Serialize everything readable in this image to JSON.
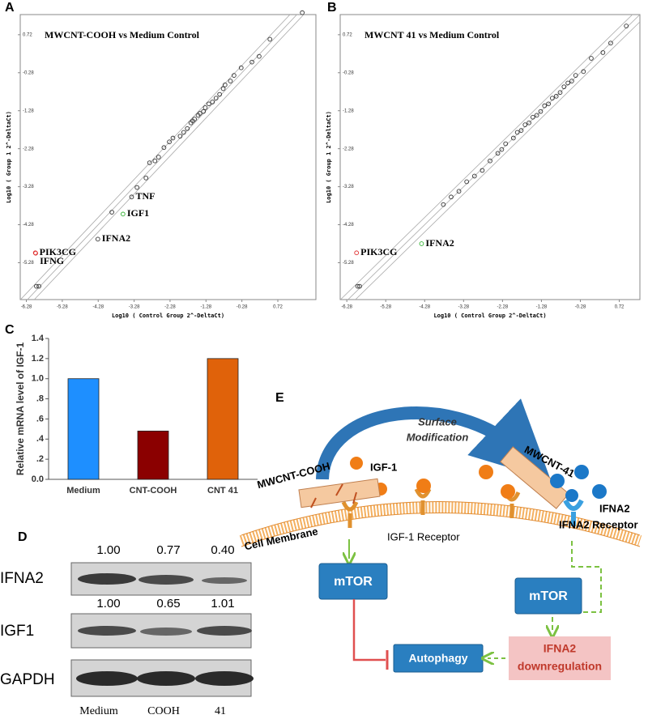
{
  "panel_labels": [
    "A",
    "B",
    "C",
    "D",
    "E"
  ],
  "chart_data": [
    {
      "type": "scatter",
      "title": "MWCNT-COOH vs Medium Control",
      "x_label": "Log10 ( Control Group 2^-DeltaCt)",
      "y_label": "Log10 ( Group 1 2^-DeltaCt)",
      "xlim": [
        -6.45,
        1.78
      ],
      "ylim": [
        -6.25,
        1.25
      ],
      "xticks": [
        -6.28,
        -5.28,
        -4.28,
        -3.28,
        -2.28,
        -1.28,
        -0.28,
        0.72
      ],
      "yticks": [
        -5.28,
        -4.28,
        -3.28,
        -2.28,
        -1.28,
        -0.28,
        0.72
      ],
      "marker_color": "#333333",
      "x": [
        -6.0,
        -5.93,
        -6.03,
        -6.02,
        -4.29,
        -3.59,
        -3.9,
        -3.35,
        -3.2,
        -2.95,
        -2.85,
        -2.7,
        -2.6,
        -2.45,
        -2.3,
        -2.2,
        -2.0,
        -1.9,
        -1.8,
        -1.7,
        -1.65,
        -1.6,
        -1.5,
        -1.45,
        -1.35,
        -1.3,
        -1.2,
        -1.1,
        -1.0,
        -0.9,
        -0.8,
        -0.75,
        -0.6,
        -0.5,
        -0.3,
        0.0,
        0.2,
        0.5,
        1.4
      ],
      "y": [
        -5.9,
        -5.9,
        -5.02,
        -5.03,
        -4.66,
        -4.0,
        -3.95,
        -3.55,
        -3.3,
        -3.05,
        -2.65,
        -2.6,
        -2.5,
        -2.25,
        -2.1,
        -2.0,
        -1.95,
        -1.85,
        -1.75,
        -1.6,
        -1.55,
        -1.5,
        -1.4,
        -1.35,
        -1.3,
        -1.2,
        -1.1,
        -1.05,
        -0.95,
        -0.85,
        -0.7,
        -0.6,
        -0.5,
        -0.35,
        -0.15,
        0.0,
        0.15,
        0.6,
        1.3
      ],
      "labels": [
        null,
        null,
        "PIK3CG",
        "IFNG",
        "IFNA2",
        "IGF1",
        null,
        "TNF",
        null,
        null,
        null,
        null,
        null,
        null,
        null,
        null,
        null,
        null,
        null,
        null,
        null,
        null,
        null,
        null,
        null,
        null,
        null,
        null,
        null,
        null,
        null,
        null,
        null,
        null,
        null,
        null,
        null,
        null,
        null
      ],
      "highlight_colors": [
        null,
        null,
        "#e03030",
        "#e03030",
        null,
        "#30b030",
        null,
        null,
        null,
        null,
        null,
        null,
        null,
        null,
        null,
        null,
        null,
        null,
        null,
        null,
        null,
        null,
        null,
        null,
        null,
        null,
        null,
        null,
        null,
        null,
        null,
        null,
        null,
        null,
        null,
        null,
        null,
        null,
        null
      ]
    },
    {
      "type": "scatter",
      "title": "MWCNT 41 vs Medium Control",
      "x_label": "Log10 ( Control Group 2^-DeltaCt)",
      "y_label": "Log10 ( Group 1 2^-DeltaCt)",
      "xlim": [
        -6.45,
        1.25
      ],
      "ylim": [
        -6.25,
        1.25
      ],
      "xticks": [
        -6.28,
        -5.28,
        -4.28,
        -3.28,
        -2.28,
        -1.28,
        -0.28,
        0.72
      ],
      "yticks": [
        -5.28,
        -4.28,
        -3.28,
        -2.28,
        -1.28,
        -0.28,
        0.72
      ],
      "marker_color": "#333333",
      "x": [
        -6.0,
        -5.95,
        -6.03,
        -4.36,
        -3.8,
        -3.6,
        -3.4,
        -3.2,
        -3.0,
        -2.8,
        -2.6,
        -2.4,
        -2.3,
        -2.2,
        -2.0,
        -1.9,
        -1.8,
        -1.7,
        -1.6,
        -1.5,
        -1.4,
        -1.3,
        -1.2,
        -1.1,
        -1.0,
        -0.9,
        -0.8,
        -0.7,
        -0.6,
        -0.5,
        -0.4,
        -0.2,
        0.0,
        0.3,
        0.5,
        0.9
      ],
      "y": [
        -5.9,
        -5.9,
        -5.02,
        -4.78,
        -3.75,
        -3.55,
        -3.4,
        -3.15,
        -3.0,
        -2.85,
        -2.6,
        -2.4,
        -2.3,
        -2.15,
        -2.0,
        -1.85,
        -1.8,
        -1.65,
        -1.6,
        -1.45,
        -1.4,
        -1.3,
        -1.15,
        -1.1,
        -0.95,
        -0.9,
        -0.8,
        -0.65,
        -0.55,
        -0.5,
        -0.35,
        -0.25,
        0.1,
        0.25,
        0.5,
        0.95
      ],
      "labels": [
        null,
        null,
        "PIK3CG",
        "IFNA2",
        null,
        null,
        null,
        null,
        null,
        null,
        null,
        null,
        null,
        null,
        null,
        null,
        null,
        null,
        null,
        null,
        null,
        null,
        null,
        null,
        null,
        null,
        null,
        null,
        null,
        null,
        null,
        null,
        null,
        null,
        null,
        null
      ],
      "highlight_colors": [
        null,
        null,
        "#e03030",
        "#30b030",
        null,
        null,
        null,
        null,
        null,
        null,
        null,
        null,
        null,
        null,
        null,
        null,
        null,
        null,
        null,
        null,
        null,
        null,
        null,
        null,
        null,
        null,
        null,
        null,
        null,
        null,
        null,
        null,
        null,
        null,
        null,
        null
      ]
    },
    {
      "type": "bar",
      "y_label": "Relative mRNA level of IGF-1",
      "categories": [
        "Medium",
        "CNT-COOH",
        "CNT 41"
      ],
      "values": [
        1.0,
        0.48,
        1.2
      ],
      "colors": [
        "#1e8fff",
        "#8b0000",
        "#e0620a"
      ],
      "ylim": [
        0,
        1.4
      ],
      "yticks": [
        {
          "value": 0,
          "label": "0.0"
        },
        {
          "value": 0.2,
          "label": ".2"
        },
        {
          "value": 0.4,
          "label": ".4"
        },
        {
          "value": 0.6,
          "label": ".6"
        },
        {
          "value": 0.8,
          "label": ".8"
        },
        {
          "value": 1.0,
          "label": "1.0"
        },
        {
          "value": 1.2,
          "label": "1.2"
        },
        {
          "value": 1.4,
          "label": "1.4"
        }
      ]
    }
  ],
  "blot": {
    "rows": [
      {
        "name": "IFNA2",
        "values": [
          "1.00",
          "0.77",
          "0.40"
        ]
      },
      {
        "name": "IGF1",
        "values": [
          "1.00",
          "0.65",
          "1.01"
        ]
      },
      {
        "name": "GAPDH"
      }
    ],
    "lanes": [
      "Medium",
      "COOH",
      "41"
    ]
  },
  "diagram": {
    "arc_label": [
      "Surface",
      "Modification"
    ],
    "cnt_cooh": "MWCNT-COOH",
    "igf1": "IGF-1",
    "cnt41": "MWCNT-41",
    "ifna2": "IFNA2",
    "ifna2_receptor": "IFNA2 Receptor",
    "igf1_receptor": "IGF-1 Receptor",
    "membrane": "Cell Membrane",
    "mtor_left": "mTOR",
    "mtor_right": "mTOR",
    "autophagy": "Autophagy",
    "downregulation": [
      "IFNA2",
      "downregulation"
    ]
  }
}
